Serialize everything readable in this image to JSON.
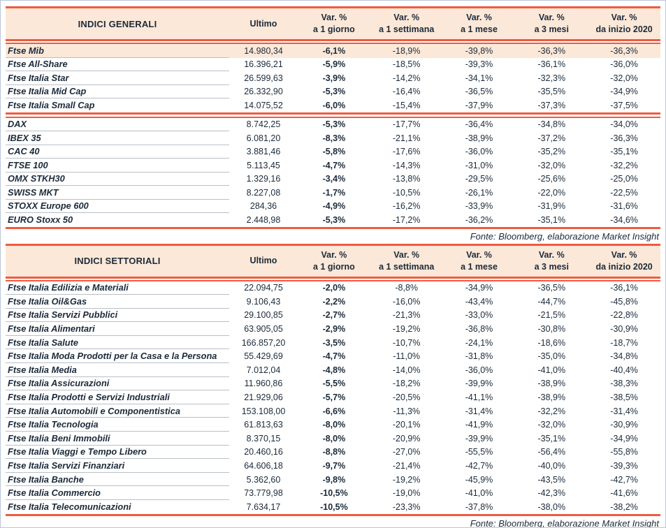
{
  "colors": {
    "accent_red": "#ee5b40",
    "header_bg": "#fce8d8",
    "highlight_bg": "#fce8d8",
    "text": "#1b2a3a",
    "row_divider": "#b9bfc6",
    "page_border": "#b9c5da"
  },
  "column_headers": {
    "ultimo": "Ultimo",
    "vars": [
      {
        "line1": "Var. %",
        "line2": "a 1 giorno"
      },
      {
        "line1": "Var. %",
        "line2": "a 1 settimana"
      },
      {
        "line1": "Var. %",
        "line2": "a 1 mese"
      },
      {
        "line1": "Var. %",
        "line2": "a 3 mesi"
      },
      {
        "line1": "Var. %",
        "line2": "da inizio 2020"
      }
    ]
  },
  "tables": [
    {
      "title": "INDICI GENERALI",
      "source_note": "Fonte: Bloomberg, elaborazione Market Insight",
      "groups": [
        {
          "rows": [
            {
              "name": "Ftse Mib",
              "highlight": true,
              "values": [
                "14.980,34",
                "-6,1%",
                "-18,9%",
                "-39,8%",
                "-36,3%",
                "-36,3%"
              ]
            },
            {
              "name": "Ftse All-Share",
              "values": [
                "16.396,21",
                "-5,9%",
                "-18,5%",
                "-39,3%",
                "-36,1%",
                "-36,0%"
              ]
            },
            {
              "name": "Ftse Italia Star",
              "values": [
                "26.599,63",
                "-3,9%",
                "-14,2%",
                "-34,1%",
                "-32,3%",
                "-32,0%"
              ]
            },
            {
              "name": "Ftse Italia Mid Cap",
              "values": [
                "26.332,90",
                "-5,3%",
                "-16,4%",
                "-36,5%",
                "-35,5%",
                "-34,9%"
              ]
            },
            {
              "name": "Ftse Italia Small Cap",
              "values": [
                "14.075,52",
                "-6,0%",
                "-15,4%",
                "-37,9%",
                "-37,3%",
                "-37,5%"
              ]
            }
          ]
        },
        {
          "rows": [
            {
              "name": "DAX",
              "values": [
                "8.742,25",
                "-5,3%",
                "-17,7%",
                "-36,4%",
                "-34,8%",
                "-34,0%"
              ]
            },
            {
              "name": "IBEX 35",
              "values": [
                "6.081,20",
                "-8,3%",
                "-21,1%",
                "-38,9%",
                "-37,2%",
                "-36,3%"
              ]
            },
            {
              "name": "CAC 40",
              "values": [
                "3.881,46",
                "-5,8%",
                "-17,6%",
                "-36,0%",
                "-35,2%",
                "-35,1%"
              ]
            },
            {
              "name": "FTSE 100",
              "values": [
                "5.113,45",
                "-4,7%",
                "-14,3%",
                "-31,0%",
                "-32,0%",
                "-32,2%"
              ]
            },
            {
              "name": "OMX STKH30",
              "values": [
                "1.329,16",
                "-3,4%",
                "-13,8%",
                "-29,5%",
                "-25,6%",
                "-25,0%"
              ]
            },
            {
              "name": "SWISS MKT",
              "values": [
                "8.227,08",
                "-1,7%",
                "-10,5%",
                "-26,1%",
                "-22,0%",
                "-22,5%"
              ]
            },
            {
              "name": "STOXX Europe 600",
              "values": [
                "284,36",
                "-4,9%",
                "-16,2%",
                "-33,9%",
                "-31,9%",
                "-31,6%"
              ]
            },
            {
              "name": "EURO Stoxx 50",
              "values": [
                "2.448,98",
                "-5,3%",
                "-17,2%",
                "-36,2%",
                "-35,1%",
                "-34,6%"
              ]
            }
          ]
        }
      ]
    },
    {
      "title": "INDICI SETTORIALI",
      "source_note": "Fonte: Bloomberg, elaborazione Market Insight",
      "groups": [
        {
          "rows": [
            {
              "name": "Ftse Italia Edilizia e Materiali",
              "values": [
                "22.094,75",
                "-2,0%",
                "-8,8%",
                "-34,9%",
                "-36,5%",
                "-36,1%"
              ]
            },
            {
              "name": "Ftse Italia Oil&Gas",
              "values": [
                "9.106,43",
                "-2,2%",
                "-16,0%",
                "-43,4%",
                "-44,7%",
                "-45,8%"
              ]
            },
            {
              "name": "Ftse Italia Servizi Pubblici",
              "values": [
                "29.100,85",
                "-2,7%",
                "-21,3%",
                "-33,0%",
                "-21,5%",
                "-22,8%"
              ]
            },
            {
              "name": "Ftse Italia Alimentari",
              "values": [
                "63.905,05",
                "-2,9%",
                "-19,2%",
                "-36,8%",
                "-30,8%",
                "-30,9%"
              ]
            },
            {
              "name": "Ftse Italia Salute",
              "values": [
                "166.857,20",
                "-3,5%",
                "-10,7%",
                "-24,1%",
                "-18,6%",
                "-18,7%"
              ]
            },
            {
              "name": "Ftse Italia Moda Prodotti per la Casa e la Persona",
              "values": [
                "55.429,69",
                "-4,7%",
                "-11,0%",
                "-31,8%",
                "-35,0%",
                "-34,8%"
              ]
            },
            {
              "name": "Ftse Italia Media",
              "values": [
                "7.012,04",
                "-4,8%",
                "-14,0%",
                "-36,0%",
                "-41,0%",
                "-40,4%"
              ]
            },
            {
              "name": "Ftse Italia Assicurazioni",
              "values": [
                "11.960,86",
                "-5,5%",
                "-18,2%",
                "-39,9%",
                "-38,9%",
                "-38,3%"
              ]
            },
            {
              "name": "Ftse Italia Prodotti e Servizi Industriali",
              "values": [
                "21.929,06",
                "-5,7%",
                "-20,5%",
                "-41,1%",
                "-38,9%",
                "-38,5%"
              ]
            },
            {
              "name": "Ftse Italia Automobili e Componentistica",
              "values": [
                "153.108,00",
                "-6,6%",
                "-11,3%",
                "-31,4%",
                "-32,2%",
                "-31,4%"
              ]
            },
            {
              "name": "Ftse Italia Tecnologia",
              "values": [
                "61.813,63",
                "-8,0%",
                "-20,1%",
                "-41,9%",
                "-32,0%",
                "-30,9%"
              ]
            },
            {
              "name": "Ftse Italia Beni Immobili",
              "values": [
                "8.370,15",
                "-8,0%",
                "-20,9%",
                "-39,9%",
                "-35,1%",
                "-34,9%"
              ]
            },
            {
              "name": "Ftse Italia Viaggi e Tempo Libero",
              "values": [
                "20.460,16",
                "-8,8%",
                "-27,0%",
                "-55,5%",
                "-56,4%",
                "-55,8%"
              ]
            },
            {
              "name": "Ftse Italia Servizi Finanziari",
              "values": [
                "64.606,18",
                "-9,7%",
                "-21,4%",
                "-42,7%",
                "-40,0%",
                "-39,3%"
              ]
            },
            {
              "name": "Ftse Italia Banche",
              "values": [
                "5.362,60",
                "-9,8%",
                "-19,2%",
                "-45,9%",
                "-43,5%",
                "-42,7%"
              ]
            },
            {
              "name": "Ftse Italia Commercio",
              "values": [
                "73.779,98",
                "-10,5%",
                "-19,0%",
                "-41,0%",
                "-42,3%",
                "-41,6%"
              ]
            },
            {
              "name": "Ftse Italia Telecomunicazioni",
              "values": [
                "7.634,17",
                "-10,5%",
                "-23,3%",
                "-37,8%",
                "-38,0%",
                "-38,2%"
              ]
            }
          ]
        }
      ]
    }
  ]
}
